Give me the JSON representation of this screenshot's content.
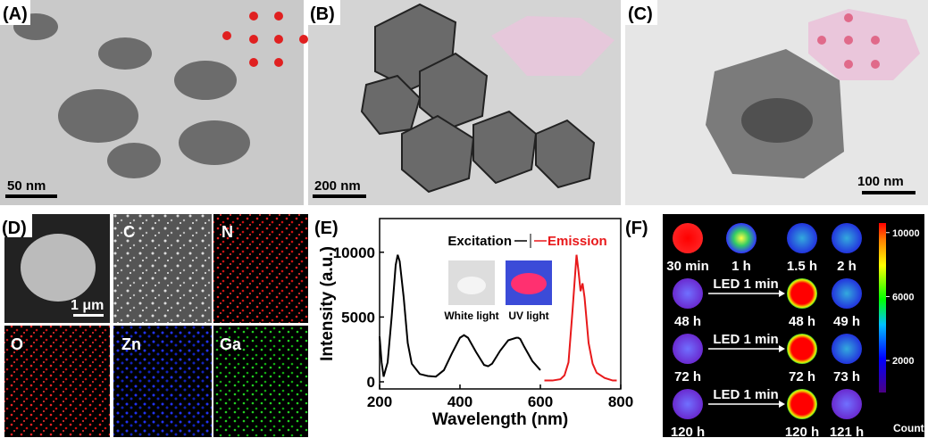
{
  "panels": {
    "a": {
      "label": "(A)",
      "scale_bar": "50 nm"
    },
    "b": {
      "label": "(B)",
      "scale_bar": "200 nm"
    },
    "c": {
      "label": "(C)",
      "scale_bar": "100 nm"
    },
    "d": {
      "label": "(D)",
      "scale_bar": "1 μm",
      "maps": [
        "C",
        "N",
        "O",
        "Zn",
        "Ga"
      ]
    },
    "e": {
      "label": "(E)"
    },
    "f": {
      "label": "(F)",
      "rows": [
        [
          "30 min",
          "1 h",
          "1.5 h",
          "2 h"
        ],
        [
          "48 h",
          "48 h",
          "49 h"
        ],
        [
          "72 h",
          "72 h",
          "73 h"
        ],
        [
          "120 h",
          "120 h",
          "121 h"
        ]
      ],
      "arrows": [
        "LED 1 min",
        "LED 1 min",
        "LED 1 min"
      ],
      "colorbar": {
        "lim": [
          0,
          10600
        ],
        "ticks": [
          10000,
          6000,
          2000
        ],
        "label": "Counts"
      }
    }
  },
  "chart_data": {
    "type": "line",
    "xlabel": "Wavelength (nm)",
    "ylabel": "Intensity (a.u.)",
    "xlim": [
      200,
      800
    ],
    "xticks": [
      200,
      400,
      600,
      800
    ],
    "ylim": [
      -550,
      12600
    ],
    "yticks": [
      0,
      5000,
      10000
    ],
    "insets": [
      "White light",
      "UV light"
    ],
    "series": [
      {
        "name": "Excitation",
        "color": "#000000",
        "x": [
          200,
          205,
          210,
          220,
          230,
          240,
          245,
          250,
          260,
          270,
          280,
          300,
          320,
          340,
          360,
          380,
          400,
          410,
          420,
          440,
          460,
          470,
          480,
          500,
          520,
          540,
          545,
          550,
          560,
          580,
          600
        ],
        "values": [
          3500,
          1500,
          400,
          1500,
          5000,
          9000,
          9800,
          9300,
          6500,
          3000,
          1400,
          600,
          450,
          400,
          900,
          2200,
          3400,
          3600,
          3400,
          2300,
          1300,
          1200,
          1400,
          2400,
          3200,
          3400,
          3400,
          3300,
          2700,
          1600,
          900
        ]
      },
      {
        "name": "Emission",
        "color": "#e8191b",
        "x": [
          610,
          630,
          650,
          660,
          670,
          680,
          690,
          695,
          700,
          705,
          710,
          720,
          730,
          740,
          760,
          780,
          790
        ],
        "values": [
          100,
          100,
          200,
          500,
          1500,
          5500,
          9800,
          8500,
          7000,
          7600,
          6500,
          3000,
          1400,
          700,
          300,
          100,
          100
        ]
      }
    ]
  }
}
